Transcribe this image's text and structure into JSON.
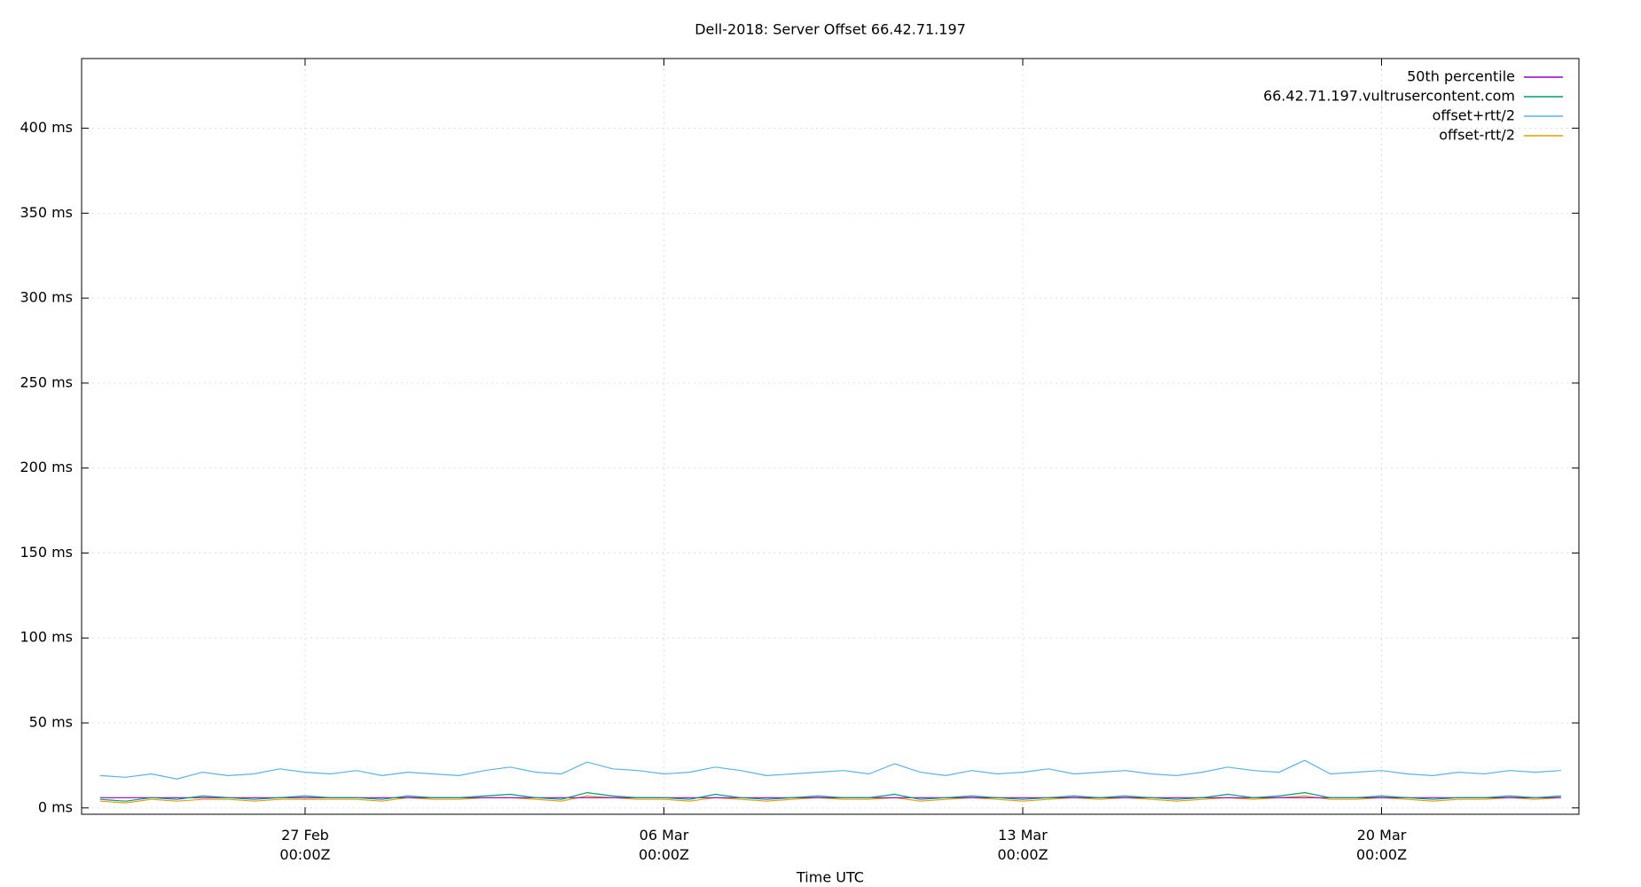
{
  "chart_data": {
    "type": "line",
    "title": "Dell-2018: Server Offset 66.42.71.197",
    "x_label": "Time UTC",
    "xlim": [
      -4.36,
      24.85
    ],
    "xticks": [
      {
        "value": 0,
        "label": "27 Feb 00:00Z"
      },
      {
        "value": 7,
        "label": "06 Mar 00:00Z"
      },
      {
        "value": 14,
        "label": "13 Mar 00:00Z"
      },
      {
        "value": 21,
        "label": "20 Mar 00:00Z"
      }
    ],
    "ylim": [
      -3.75,
      441
    ],
    "yticks": [
      {
        "value": 0,
        "label": "0 ms"
      },
      {
        "value": 50,
        "label": "50 ms"
      },
      {
        "value": 100,
        "label": "100 ms"
      },
      {
        "value": 150,
        "label": "150 ms"
      },
      {
        "value": 200,
        "label": "200 ms"
      },
      {
        "value": 250,
        "label": "250 ms"
      },
      {
        "value": 300,
        "label": "300 ms"
      },
      {
        "value": 350,
        "label": "350 ms"
      },
      {
        "value": 400,
        "label": "400 ms"
      }
    ],
    "grid": true,
    "legend": "top-right",
    "x": [
      -4,
      -3.5,
      -3,
      -2.5,
      -2,
      -1.5,
      -1,
      -0.5,
      0,
      0.5,
      1,
      1.5,
      2,
      2.5,
      3,
      3.5,
      4,
      4.5,
      5,
      5.5,
      6,
      6.5,
      7,
      7.5,
      8,
      8.5,
      9,
      9.5,
      10,
      10.5,
      11,
      11.5,
      12,
      12.5,
      13,
      13.5,
      14,
      14.5,
      15,
      15.5,
      16,
      16.5,
      17,
      17.5,
      18,
      18.5,
      19,
      19.5,
      20,
      20.5,
      21,
      21.5,
      22,
      22.5,
      23,
      23.5,
      24,
      24.5
    ],
    "series": [
      {
        "name": "50th percentile",
        "color": "#9400d3",
        "values": [
          6,
          6,
          6,
          6,
          6,
          6,
          6,
          6,
          6,
          6,
          6,
          6,
          6,
          6,
          6,
          6,
          6,
          6,
          6,
          6,
          6,
          6,
          6,
          6,
          6,
          6,
          6,
          6,
          6,
          6,
          6,
          6,
          6,
          6,
          6,
          6,
          6,
          6,
          6,
          6,
          6,
          6,
          6,
          6,
          6,
          6,
          6,
          6,
          6,
          6,
          6,
          6,
          6,
          6,
          6,
          6,
          6,
          6
        ]
      },
      {
        "name": "66.42.71.197.vultrusercontent.com",
        "color": "#009e73",
        "values": [
          5,
          4,
          6,
          5,
          7,
          6,
          5,
          6,
          7,
          6,
          6,
          5,
          7,
          6,
          6,
          7,
          8,
          6,
          5,
          9,
          7,
          6,
          6,
          5,
          8,
          6,
          5,
          6,
          7,
          6,
          6,
          8,
          5,
          6,
          7,
          6,
          5,
          6,
          7,
          6,
          7,
          6,
          5,
          6,
          8,
          6,
          7,
          9,
          6,
          6,
          7,
          6,
          5,
          6,
          6,
          7,
          6,
          7
        ]
      },
      {
        "name": "offset+rtt/2",
        "color": "#56b4e9",
        "values": [
          19,
          18,
          20,
          17,
          21,
          19,
          20,
          23,
          21,
          20,
          22,
          19,
          21,
          20,
          19,
          22,
          24,
          21,
          20,
          27,
          23,
          22,
          20,
          21,
          24,
          22,
          19,
          20,
          21,
          22,
          20,
          26,
          21,
          19,
          22,
          20,
          21,
          23,
          20,
          21,
          22,
          20,
          19,
          21,
          24,
          22,
          21,
          28,
          20,
          21,
          22,
          20,
          19,
          21,
          20,
          22,
          21,
          22
        ]
      },
      {
        "name": "offset-rtt/2",
        "color": "#e69f00",
        "values": [
          4,
          3,
          5,
          4,
          5,
          5,
          4,
          5,
          5,
          5,
          5,
          4,
          6,
          5,
          5,
          6,
          6,
          5,
          4,
          7,
          6,
          5,
          5,
          4,
          6,
          5,
          4,
          5,
          6,
          5,
          5,
          6,
          4,
          5,
          6,
          5,
          4,
          5,
          6,
          5,
          6,
          5,
          4,
          5,
          6,
          5,
          6,
          7,
          5,
          5,
          6,
          5,
          4,
          5,
          5,
          6,
          5,
          6
        ]
      }
    ]
  }
}
